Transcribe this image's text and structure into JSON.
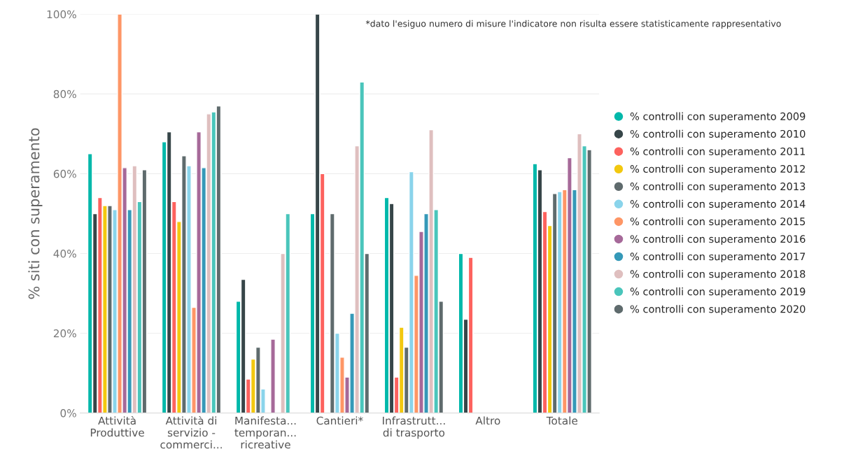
{
  "chart_data": {
    "type": "bar",
    "ylabel": "% siti con superamento",
    "annotations": [
      "*dato l'esiguo numero di misure l'indicatore non risulta essere statisticamente rappresentativo"
    ],
    "categories": [
      "Attività\nProduttive",
      "Attività di\nservizio -\ncommerci...",
      "Manifesta...\ntemporan...\nricreative",
      "Cantieri*",
      "Infrastrutt...\ndi trasporto",
      "Altro",
      "Totale"
    ],
    "series": [
      {
        "name": "% controlli con superamento 2009",
        "color": "#01b8aa",
        "values": [
          65,
          68,
          28,
          50,
          54,
          40,
          62.5
        ]
      },
      {
        "name": "% controlli con superamento 2010",
        "color": "#374649",
        "values": [
          50,
          70.5,
          33.5,
          100,
          52.5,
          23.5,
          61
        ]
      },
      {
        "name": "% controlli con superamento 2011",
        "color": "#fd625e",
        "values": [
          54,
          53,
          8.5,
          60,
          9,
          39,
          50.5
        ]
      },
      {
        "name": "% controlli con superamento 2012",
        "color": "#f2c80f",
        "values": [
          52,
          48,
          13.5,
          null,
          21.5,
          null,
          47
        ]
      },
      {
        "name": "% controlli con superamento 2013",
        "color": "#5f6b6d",
        "values": [
          52,
          64.5,
          16.5,
          50,
          16.5,
          null,
          55
        ]
      },
      {
        "name": "% controlli con superamento 2014",
        "color": "#8ad4eb",
        "values": [
          51,
          62,
          6,
          20,
          60.5,
          null,
          55.5
        ]
      },
      {
        "name": "% controlli con superamento 2015",
        "color": "#fe9666",
        "values": [
          100,
          26.5,
          null,
          14,
          34.5,
          null,
          56
        ]
      },
      {
        "name": "% controlli con superamento 2016",
        "color": "#a66999",
        "values": [
          61.5,
          70.5,
          18.5,
          9,
          45.5,
          null,
          64
        ]
      },
      {
        "name": "% controlli con superamento 2017",
        "color": "#3599b8",
        "values": [
          51,
          61.5,
          null,
          25,
          50,
          null,
          56
        ]
      },
      {
        "name": "% controlli con superamento 2018",
        "color": "#dfbfbf",
        "values": [
          62,
          75,
          40,
          67,
          71,
          null,
          70
        ]
      },
      {
        "name": "% controlli con superamento 2019",
        "color": "#4ac5bb",
        "values": [
          53,
          75.5,
          50,
          83,
          51,
          null,
          67
        ]
      },
      {
        "name": "% controlli con superamento 2020",
        "color": "#5f6b6d",
        "values": [
          61,
          77,
          null,
          40,
          28,
          null,
          66
        ]
      }
    ],
    "ylim": [
      0,
      100
    ],
    "yticks": [
      {
        "value": 0,
        "label": "0%"
      },
      {
        "value": 20,
        "label": "20%"
      },
      {
        "value": 40,
        "label": "40%"
      },
      {
        "value": 60,
        "label": "60%"
      },
      {
        "value": 80,
        "label": "80%"
      },
      {
        "value": 100,
        "label": "100%"
      }
    ],
    "grid": "y",
    "legend": "right",
    "marker": "circle"
  }
}
